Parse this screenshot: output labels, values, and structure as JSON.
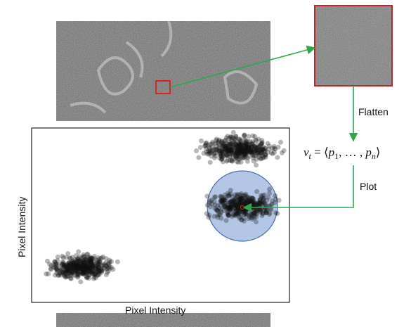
{
  "labels": {
    "flatten": "Flatten",
    "plot": "Plot",
    "y_axis": "Pixel Intensity",
    "x_axis": "Pixel Intensity"
  },
  "vector": {
    "parts": [
      {
        "text": "v",
        "italic": true
      },
      {
        "text": "t",
        "italic": true,
        "sub": true
      },
      {
        "text": " = ⟨"
      },
      {
        "text": "p",
        "italic": true
      },
      {
        "text": "1",
        "sub": true
      },
      {
        "text": ", … , "
      },
      {
        "text": "p",
        "italic": true
      },
      {
        "text": "n",
        "italic": true,
        "sub": true
      },
      {
        "text": "⟩"
      }
    ]
  }
}
